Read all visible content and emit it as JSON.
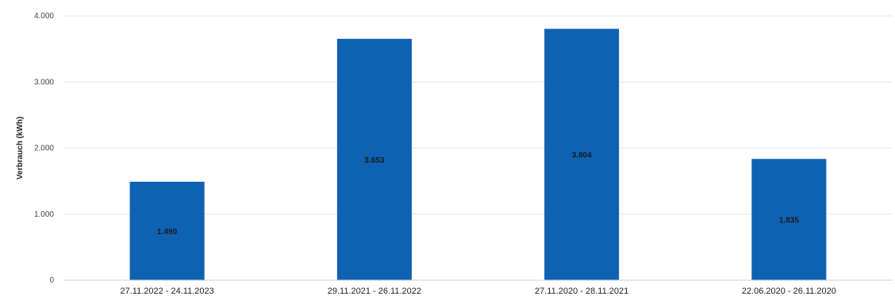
{
  "chart_data": {
    "type": "bar",
    "title": "",
    "xlabel": "",
    "ylabel": "Verbrauch (kWh)",
    "categories": [
      "27.11.2022 - 24.11.2023",
      "29.11.2021 - 26.11.2022",
      "27.11.2020 - 28.11.2021",
      "22.06.2020 - 26.11.2020"
    ],
    "values": [
      1490,
      3653,
      3804,
      1835
    ],
    "value_labels": [
      "1.490",
      "3.653",
      "3.804",
      "1.835"
    ],
    "ylim": [
      0,
      4000
    ],
    "yticks": [
      0,
      1000,
      2000,
      3000,
      4000
    ],
    "ytick_labels": [
      "0",
      "1.000",
      "2.000",
      "3.000",
      "4.000"
    ],
    "grid": true,
    "legend": "none",
    "bar_color": "#0f61b4"
  }
}
